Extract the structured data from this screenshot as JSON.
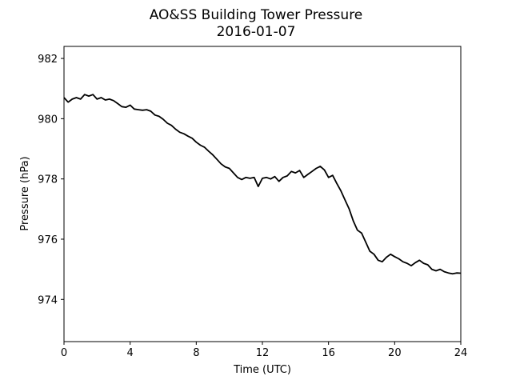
{
  "chart_data": {
    "type": "line",
    "title": "AO&SS Building Tower Pressure",
    "subtitle": "2016-01-07",
    "xlabel": "Time (UTC)",
    "ylabel": "Pressure (hPa)",
    "xlim": [
      0,
      24
    ],
    "ylim": [
      972.6,
      982.4
    ],
    "xticks": [
      0,
      4,
      8,
      12,
      16,
      20,
      24
    ],
    "yticks": [
      974,
      976,
      978,
      980,
      982
    ],
    "grid": false,
    "series": [
      {
        "color": "#000000",
        "x": [
          0.0,
          0.25,
          0.5,
          0.75,
          1.0,
          1.25,
          1.5,
          1.75,
          2.0,
          2.25,
          2.5,
          2.75,
          3.0,
          3.25,
          3.5,
          3.75,
          4.0,
          4.25,
          4.5,
          4.75,
          5.0,
          5.25,
          5.5,
          5.75,
          6.0,
          6.25,
          6.5,
          6.75,
          7.0,
          7.25,
          7.5,
          7.75,
          8.0,
          8.25,
          8.5,
          8.75,
          9.0,
          9.25,
          9.5,
          9.75,
          10.0,
          10.25,
          10.5,
          10.75,
          11.0,
          11.25,
          11.5,
          11.75,
          12.0,
          12.25,
          12.5,
          12.75,
          13.0,
          13.25,
          13.5,
          13.75,
          14.0,
          14.25,
          14.5,
          14.75,
          15.0,
          15.25,
          15.5,
          15.75,
          16.0,
          16.25,
          16.5,
          16.75,
          17.0,
          17.25,
          17.5,
          17.75,
          18.0,
          18.25,
          18.5,
          18.75,
          19.0,
          19.25,
          19.5,
          19.75,
          20.0,
          20.25,
          20.5,
          20.75,
          21.0,
          21.25,
          21.5,
          21.75,
          22.0,
          22.25,
          22.5,
          22.75,
          23.0,
          23.25,
          23.5,
          23.75,
          24.0
        ],
        "y": [
          980.7,
          980.55,
          980.65,
          980.7,
          980.65,
          980.8,
          980.75,
          980.8,
          980.65,
          980.7,
          980.62,
          980.65,
          980.6,
          980.5,
          980.4,
          980.38,
          980.45,
          980.32,
          980.3,
          980.28,
          980.3,
          980.25,
          980.12,
          980.08,
          979.98,
          979.85,
          979.78,
          979.65,
          979.55,
          979.5,
          979.42,
          979.35,
          979.22,
          979.12,
          979.05,
          978.92,
          978.8,
          978.65,
          978.5,
          978.4,
          978.35,
          978.2,
          978.05,
          977.98,
          978.05,
          978.02,
          978.05,
          977.75,
          978.02,
          978.05,
          978.0,
          978.08,
          977.92,
          978.05,
          978.1,
          978.25,
          978.2,
          978.28,
          978.05,
          978.15,
          978.25,
          978.35,
          978.42,
          978.3,
          978.05,
          978.12,
          977.85,
          977.6,
          977.3,
          977.0,
          976.6,
          976.3,
          976.2,
          975.9,
          975.6,
          975.5,
          975.3,
          975.25,
          975.4,
          975.5,
          975.42,
          975.35,
          975.25,
          975.2,
          975.12,
          975.22,
          975.3,
          975.2,
          975.15,
          975.0,
          974.95,
          975.0,
          974.92,
          974.88,
          974.85,
          974.88,
          974.87
        ]
      }
    ]
  }
}
